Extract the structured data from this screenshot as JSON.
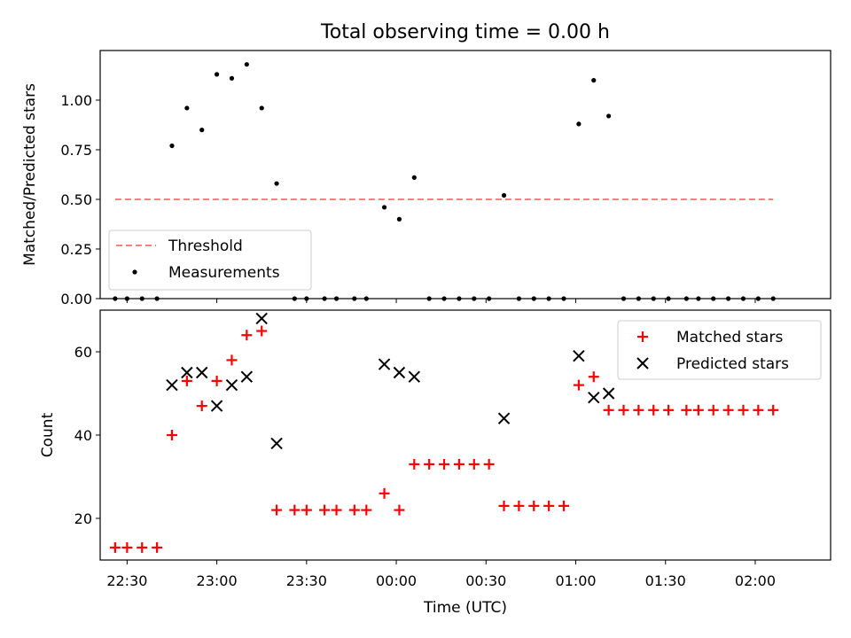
{
  "figure": {
    "title": "Total observing time = 0.00 h",
    "xlabel": "Time (UTC)"
  },
  "chart_data": [
    {
      "type": "scatter",
      "panel": "top",
      "ylabel": "Matched/Predicted stars",
      "x_axis": "time (hours since 22:00 UTC, wrapping past midnight)",
      "xlim": [
        0.35,
        4.42
      ],
      "ylim": [
        0,
        1.25
      ],
      "yticks": [
        0.0,
        0.25,
        0.5,
        0.75,
        1.0
      ],
      "ytick_labels": [
        "0.00",
        "0.25",
        "0.50",
        "0.75",
        "1.00"
      ],
      "grid": false,
      "legend": {
        "placement": "lower-left",
        "entries": [
          "Threshold",
          "Measurements"
        ]
      },
      "threshold": {
        "name": "Threshold",
        "y": 0.5,
        "x_start": "22:26",
        "x_end": "02:06",
        "color": "#ff7f7f",
        "style": "dashed"
      },
      "measurements": {
        "name": "Measurements",
        "color": "#000000",
        "x": [
          "22:26",
          "22:30",
          "22:35",
          "22:40",
          "22:45",
          "22:50",
          "22:55",
          "23:00",
          "23:05",
          "23:10",
          "23:15",
          "23:20",
          "23:26",
          "23:30",
          "23:36",
          "23:40",
          "23:46",
          "23:50",
          "23:56",
          "00:01",
          "00:06",
          "00:11",
          "00:16",
          "00:21",
          "00:26",
          "00:31",
          "00:36",
          "00:41",
          "00:46",
          "00:51",
          "00:56",
          "01:01",
          "01:06",
          "01:11",
          "01:16",
          "01:21",
          "01:26",
          "01:31",
          "01:37",
          "01:41",
          "01:46",
          "01:51",
          "01:56",
          "02:01",
          "02:06"
        ],
        "y": [
          0.0,
          0.0,
          0.0,
          0.0,
          0.77,
          0.96,
          0.85,
          1.13,
          1.11,
          1.18,
          0.96,
          0.58,
          0.0,
          0.0,
          0.0,
          0.0,
          0.0,
          0.0,
          0.46,
          0.4,
          0.61,
          0.0,
          0.0,
          0.0,
          0.0,
          0.0,
          0.52,
          0.0,
          0.0,
          0.0,
          0.0,
          0.88,
          1.1,
          0.92,
          0.0,
          0.0,
          0.0,
          0.0,
          0.0,
          0.0,
          0.0,
          0.0,
          0.0,
          0.0,
          0.0
        ]
      }
    },
    {
      "type": "scatter",
      "panel": "bottom",
      "ylabel": "Count",
      "xlabel": "Time (UTC)",
      "xlim": [
        0.35,
        4.42
      ],
      "ylim": [
        10,
        70
      ],
      "yticks": [
        20,
        40,
        60
      ],
      "xticks": [
        "22:30",
        "23:00",
        "23:30",
        "00:00",
        "00:30",
        "01:00",
        "01:30",
        "02:00"
      ],
      "grid": false,
      "legend": {
        "placement": "upper-right",
        "entries": [
          "Matched stars",
          "Predicted stars"
        ]
      },
      "series": [
        {
          "name": "Matched stars",
          "marker": "+",
          "color": "#ff0000",
          "x": [
            "22:26",
            "22:30",
            "22:35",
            "22:40",
            "22:45",
            "22:50",
            "22:55",
            "23:00",
            "23:05",
            "23:10",
            "23:15",
            "23:20",
            "23:26",
            "23:30",
            "23:36",
            "23:40",
            "23:46",
            "23:50",
            "23:56",
            "00:01",
            "00:06",
            "00:11",
            "00:16",
            "00:21",
            "00:26",
            "00:31",
            "00:36",
            "00:41",
            "00:46",
            "00:51",
            "00:56",
            "01:01",
            "01:06",
            "01:11",
            "01:16",
            "01:21",
            "01:26",
            "01:31",
            "01:37",
            "01:41",
            "01:46",
            "01:51",
            "01:56",
            "02:01",
            "02:06"
          ],
          "y": [
            13,
            13,
            13,
            13,
            40,
            53,
            47,
            53,
            58,
            64,
            65,
            22,
            22,
            22,
            22,
            22,
            22,
            22,
            26,
            22,
            33,
            33,
            33,
            33,
            33,
            33,
            23,
            23,
            23,
            23,
            23,
            52,
            54,
            46,
            46,
            46,
            46,
            46,
            46,
            46,
            46,
            46,
            46,
            46,
            46
          ]
        },
        {
          "name": "Predicted stars",
          "marker": "x",
          "color": "#000000",
          "x": [
            "22:45",
            "22:50",
            "22:55",
            "23:00",
            "23:05",
            "23:10",
            "23:15",
            "23:20",
            "23:56",
            "00:01",
            "00:06",
            "00:36",
            "01:01",
            "01:06",
            "01:11"
          ],
          "y": [
            52,
            55,
            55,
            47,
            52,
            54,
            68,
            38,
            57,
            55,
            54,
            44,
            59,
            49,
            50
          ]
        }
      ]
    }
  ]
}
